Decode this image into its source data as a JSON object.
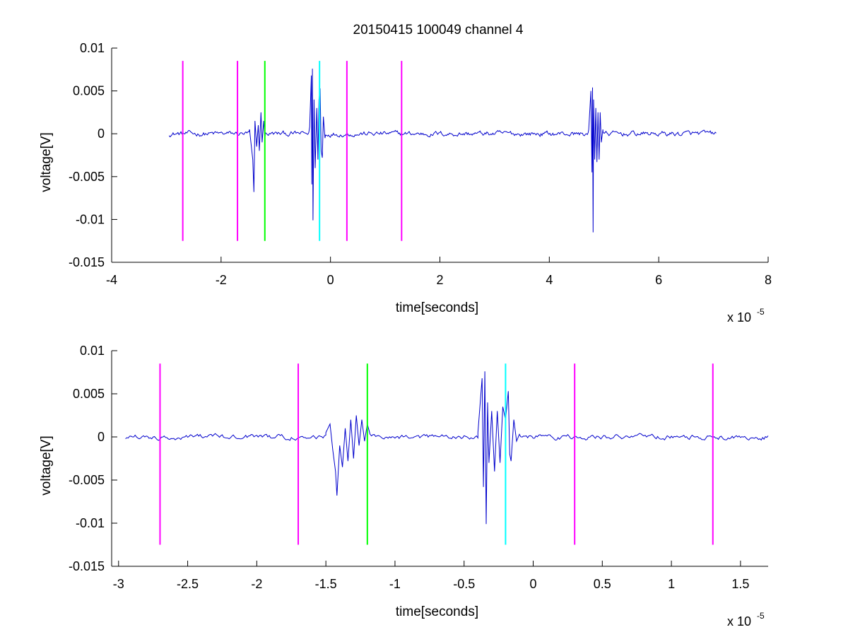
{
  "figure": {
    "title": "20150415 100049 channel 4",
    "exponent_base": "x 10",
    "exponent_power": "-5"
  },
  "chart_data": [
    {
      "type": "line",
      "title": "20150415 100049 channel 4",
      "xlabel": "time[seconds]",
      "ylabel": "voltage[V]",
      "x_scale_note": "x 10^-5",
      "xlim": [
        -4,
        8
      ],
      "ylim": [
        -0.015,
        0.01
      ],
      "x_ticks": [
        -4,
        -2,
        0,
        2,
        4,
        6,
        8
      ],
      "x_tick_labels": [
        "-4",
        "-2",
        "0",
        "2",
        "4",
        "6",
        "8"
      ],
      "y_ticks": [
        -0.015,
        -0.01,
        -0.005,
        0,
        0.005,
        0.01
      ],
      "y_tick_labels": [
        "-0.015",
        "-0.01",
        "-0.005",
        "0",
        "0.005",
        "0.01"
      ],
      "grid": false,
      "series": [
        {
          "color": "#0000cc",
          "x_range": [
            -2.95,
            7.05
          ],
          "baseline_noise": 0.0004,
          "bursts": [
            {
              "x": [
                -1.48,
                -1.42,
                -1.4,
                -1.38,
                -1.35,
                -1.32,
                -1.3,
                -1.27,
                -1.25,
                -1.22,
                -1.2
              ],
              "y": [
                0.0005,
                -0.003,
                -0.0068,
                0.0015,
                -0.0015,
                0.001,
                -0.002,
                0.0025,
                -0.001,
                0.0015,
                -0.0005
              ]
            },
            {
              "x": [
                -0.38,
                -0.35,
                -0.34,
                -0.33,
                -0.32,
                -0.3,
                -0.28,
                -0.25,
                -0.23,
                -0.21,
                -0.19,
                -0.17,
                -0.15,
                -0.13,
                -0.1
              ],
              "y": [
                0.0008,
                0.0068,
                -0.0059,
                0.0076,
                -0.0101,
                0.004,
                -0.004,
                0.003,
                -0.003,
                0.004,
                0.0053,
                -0.002,
                -0.0028,
                0.002,
                -0.0005
              ]
            },
            {
              "x": [
                4.72,
                4.76,
                4.78,
                4.79,
                4.8,
                4.81,
                4.83,
                4.85,
                4.87,
                4.89,
                4.91,
                4.93,
                4.95,
                4.98
              ],
              "y": [
                0.0005,
                0.005,
                -0.0045,
                0.0054,
                -0.0115,
                0.004,
                -0.003,
                0.003,
                -0.0033,
                0.0025,
                -0.003,
                0.0025,
                -0.001,
                0.0005
              ]
            }
          ]
        }
      ],
      "vertical_markers": [
        {
          "x": -2.7,
          "color": "#ff00ff"
        },
        {
          "x": -1.7,
          "color": "#ff00ff"
        },
        {
          "x": -1.2,
          "color": "#00ff00"
        },
        {
          "x": -0.2,
          "color": "#00ffff"
        },
        {
          "x": 0.3,
          "color": "#ff00ff"
        },
        {
          "x": 1.3,
          "color": "#ff00ff"
        }
      ],
      "marker_y_range": [
        -0.0125,
        0.0085
      ]
    },
    {
      "type": "line",
      "title": "",
      "xlabel": "time[seconds]",
      "ylabel": "voltage[V]",
      "x_scale_note": "x 10^-5",
      "xlim": [
        -3.05,
        1.7
      ],
      "ylim": [
        -0.015,
        0.01
      ],
      "x_ticks": [
        -3,
        -2.5,
        -2,
        -1.5,
        -1,
        -0.5,
        0,
        0.5,
        1,
        1.5
      ],
      "x_tick_labels": [
        "-3",
        "-2.5",
        "-2",
        "-1.5",
        "-1",
        "-0.5",
        "0",
        "0.5",
        "1",
        "1.5"
      ],
      "y_ticks": [
        -0.015,
        -0.01,
        -0.005,
        0,
        0.005,
        0.01
      ],
      "y_tick_labels": [
        "-0.015",
        "-0.01",
        "-0.005",
        "0",
        "0.005",
        "0.01"
      ],
      "grid": false,
      "series": [
        {
          "color": "#0000cc",
          "x_range": [
            -2.95,
            1.7
          ],
          "baseline_noise": 0.0004,
          "bursts": [
            {
              "x": [
                -1.5,
                -1.47,
                -1.45,
                -1.43,
                -1.42,
                -1.4,
                -1.38,
                -1.36,
                -1.34,
                -1.32,
                -1.3,
                -1.28,
                -1.26,
                -1.24,
                -1.22,
                -1.2,
                -1.18
              ],
              "y": [
                0.0005,
                0.0015,
                -0.0015,
                -0.004,
                -0.0068,
                -0.001,
                -0.0035,
                0.001,
                -0.0028,
                0.002,
                -0.0025,
                0.0025,
                -0.001,
                0.002,
                -0.0005,
                0.0015,
                0.0003
              ]
            },
            {
              "x": [
                -0.4,
                -0.37,
                -0.36,
                -0.35,
                -0.34,
                -0.33,
                -0.32,
                -0.3,
                -0.28,
                -0.26,
                -0.24,
                -0.22,
                -0.2,
                -0.18,
                -0.17,
                -0.16,
                -0.14,
                -0.12,
                -0.1
              ],
              "y": [
                0.0005,
                0.0068,
                -0.0058,
                0.0076,
                -0.0101,
                0.004,
                -0.003,
                0.003,
                -0.004,
                0.003,
                -0.003,
                0.0035,
                0.002,
                0.0053,
                -0.002,
                -0.0028,
                0.002,
                -0.0005,
                0.0003
              ]
            }
          ]
        }
      ],
      "vertical_markers": [
        {
          "x": -2.7,
          "color": "#ff00ff"
        },
        {
          "x": -1.7,
          "color": "#ff00ff"
        },
        {
          "x": -1.2,
          "color": "#00ff00"
        },
        {
          "x": -0.2,
          "color": "#00ffff"
        },
        {
          "x": 0.3,
          "color": "#ff00ff"
        },
        {
          "x": 1.3,
          "color": "#ff00ff"
        }
      ],
      "marker_y_range": [
        -0.0125,
        0.0085
      ]
    }
  ]
}
